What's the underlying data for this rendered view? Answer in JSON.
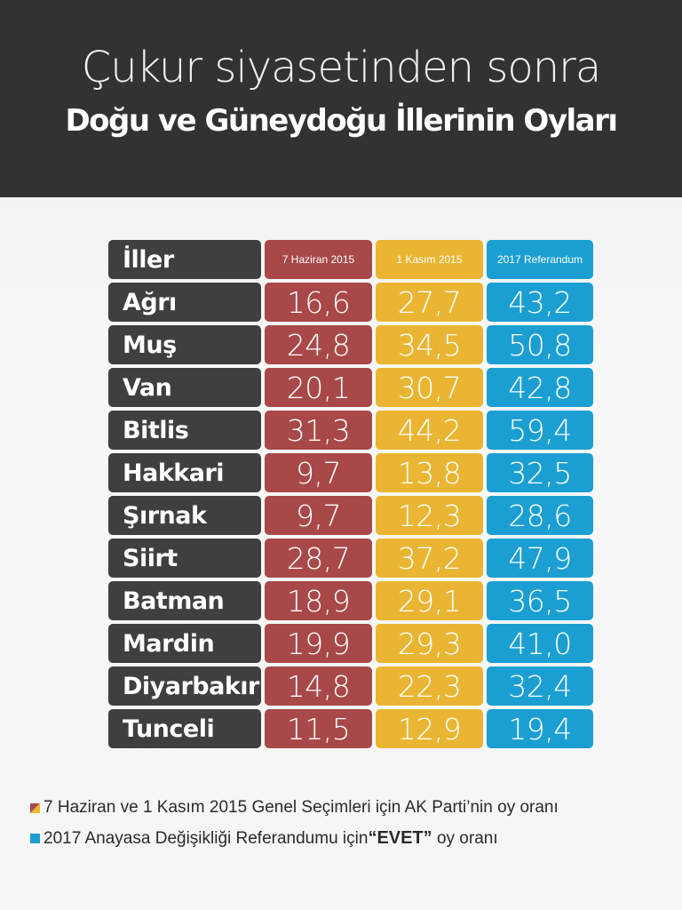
{
  "header": {
    "title_line1": "Çukur siyasetinden sonra",
    "title_line2": "Doğu ve Güneydoğu İllerinin Oyları"
  },
  "chart_data": {
    "type": "table",
    "title": "Çukur siyasetinden sonra Doğu ve Güneydoğu İllerinin Oyları",
    "columns": [
      "İller",
      "7 Haziran 2015",
      "1 Kasım 2015",
      "2017 Referandum"
    ],
    "column_colors": [
      "#403f40",
      "#a94849",
      "#eab532",
      "#1b9fd3"
    ],
    "rows": [
      {
        "name": "Ağrı",
        "values": [
          "16,6",
          "27,7",
          "43,2"
        ]
      },
      {
        "name": "Muş",
        "values": [
          "24,8",
          "34,5",
          "50,8"
        ]
      },
      {
        "name": "Van",
        "values": [
          "20,1",
          "30,7",
          "42,8"
        ]
      },
      {
        "name": "Bitlis",
        "values": [
          "31,3",
          "44,2",
          "59,4"
        ]
      },
      {
        "name": "Hakkari",
        "values": [
          "9,7",
          "13,8",
          "32,5"
        ]
      },
      {
        "name": "Şırnak",
        "values": [
          "9,7",
          "12,3",
          "28,6"
        ]
      },
      {
        "name": "Siirt",
        "values": [
          "28,7",
          "37,2",
          "47,9"
        ]
      },
      {
        "name": "Batman",
        "values": [
          "18,9",
          "29,1",
          "36,5"
        ]
      },
      {
        "name": "Mardin",
        "values": [
          "19,9",
          "29,3",
          "41,0"
        ]
      },
      {
        "name": "Diyarbakır",
        "values": [
          "14,8",
          "22,3",
          "32,4"
        ]
      },
      {
        "name": "Tunceli",
        "values": [
          "11,5",
          "12,9",
          "19,4"
        ]
      }
    ]
  },
  "legend": {
    "item1": "7 Haziran ve 1 Kasım 2015 Genel Seçimleri için AK Parti’nin oy oranı",
    "item2_before": "2017 Anayasa Değişikliği Referandumu için ",
    "item2_strong": "“EVET”",
    "item2_after": " oy oranı"
  }
}
